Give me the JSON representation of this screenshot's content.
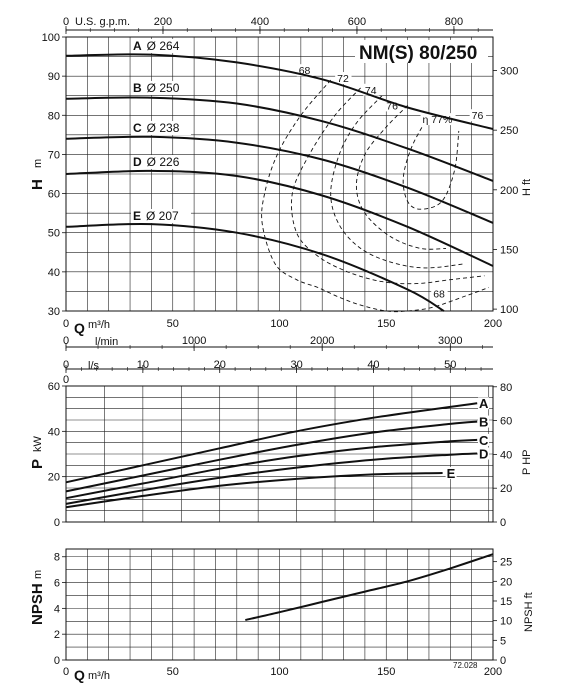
{
  "title": "NM(S) 80/250",
  "code": "72.028",
  "scales": {
    "usgpm": {
      "label": "U.S. g.p.m.",
      "ticks": [
        0,
        200,
        400,
        600,
        800
      ]
    },
    "lmin": {
      "label": "l/min",
      "ticks": [
        0,
        1000,
        2000,
        3000
      ]
    },
    "ls": {
      "label": "l/s",
      "ticks": [
        0,
        10,
        20,
        30,
        40,
        50
      ]
    },
    "q_label": "Q",
    "q_unit": "m³/h",
    "q_ticks": [
      0,
      50,
      100,
      150,
      200
    ]
  },
  "chart_data": [
    {
      "type": "line",
      "name": "head",
      "ylabel": "H",
      "yunit": "m",
      "ylabel_right": "H ft",
      "xlim": [
        0,
        200
      ],
      "ylim": [
        30,
        100
      ],
      "yticks": [
        30,
        40,
        50,
        60,
        70,
        80,
        90,
        100
      ],
      "yticks_right": [
        100,
        150,
        200,
        250,
        300
      ],
      "series": [
        {
          "name": "A",
          "diameter": "Ø 264",
          "x": [
            0,
            40,
            80,
            120,
            160,
            200
          ],
          "y": [
            95.2,
            95.5,
            93.5,
            89.2,
            82,
            76.5
          ]
        },
        {
          "name": "B",
          "diameter": "Ø 250",
          "x": [
            0,
            40,
            80,
            120,
            160,
            200
          ],
          "y": [
            84.2,
            84.5,
            83,
            78.5,
            71.5,
            63.2
          ]
        },
        {
          "name": "C",
          "diameter": "Ø 238",
          "x": [
            0,
            40,
            80,
            120,
            160,
            200
          ],
          "y": [
            74,
            74.5,
            73,
            68.7,
            61.5,
            52.5
          ]
        },
        {
          "name": "D",
          "diameter": "Ø 226",
          "x": [
            0,
            40,
            80,
            120,
            160,
            200
          ],
          "y": [
            65,
            65.8,
            64.5,
            59.5,
            51.5,
            41.5
          ]
        },
        {
          "name": "E",
          "diameter": "Ø 207",
          "x": [
            0,
            40,
            80,
            120,
            160,
            177
          ],
          "y": [
            51.5,
            52.2,
            50,
            44.5,
            35.5,
            30
          ]
        }
      ],
      "efficiency_labels": [
        "68",
        "72",
        "74",
        "76",
        "η 77%",
        "76",
        "68"
      ]
    },
    {
      "type": "line",
      "name": "power",
      "ylabel": "P",
      "yunit": "kW",
      "ylabel_right": "P HP",
      "xlim": [
        0,
        55
      ],
      "ylim": [
        0,
        60
      ],
      "yticks": [
        0,
        20,
        40,
        60
      ],
      "yticks_right": [
        0,
        20,
        40,
        60,
        80
      ],
      "series": [
        {
          "name": "A",
          "x": [
            0,
            10,
            20,
            30,
            40,
            50,
            53.5
          ],
          "y": [
            17.5,
            25,
            32.5,
            40,
            46,
            50.8,
            52.4
          ]
        },
        {
          "name": "B",
          "x": [
            0,
            10,
            20,
            30,
            40,
            50,
            53.5
          ],
          "y": [
            13.5,
            20.5,
            27.5,
            34,
            39.5,
            43.3,
            44.3
          ]
        },
        {
          "name": "C",
          "x": [
            0,
            10,
            20,
            30,
            40,
            50,
            53.5
          ],
          "y": [
            10.5,
            17,
            23.5,
            29,
            33,
            35.6,
            36.2
          ]
        },
        {
          "name": "D",
          "x": [
            0,
            10,
            20,
            30,
            40,
            50,
            53.5
          ],
          "y": [
            8,
            14,
            19.5,
            24,
            27.5,
            29.7,
            30.2
          ]
        },
        {
          "name": "E",
          "x": [
            0,
            10,
            20,
            30,
            40,
            49
          ],
          "y": [
            6.5,
            11.5,
            16,
            19,
            21,
            21.6
          ]
        }
      ],
      "labels": [
        "A",
        "B",
        "C",
        "D",
        "E"
      ]
    },
    {
      "type": "line",
      "name": "npsh",
      "ylabel": "NPSH",
      "yunit": "m",
      "ylabel_right": "NPSH ft",
      "xlim": [
        0,
        200
      ],
      "ylim": [
        0,
        8.6
      ],
      "yticks": [
        0,
        2,
        4,
        6,
        8
      ],
      "yticks_right": [
        0,
        5,
        10,
        15,
        20,
        25
      ],
      "series": [
        {
          "x": [
            84,
            100,
            120,
            140,
            160,
            180,
            200
          ],
          "y": [
            3.1,
            3.7,
            4.5,
            5.3,
            6.1,
            7.1,
            8.2
          ]
        }
      ]
    }
  ]
}
